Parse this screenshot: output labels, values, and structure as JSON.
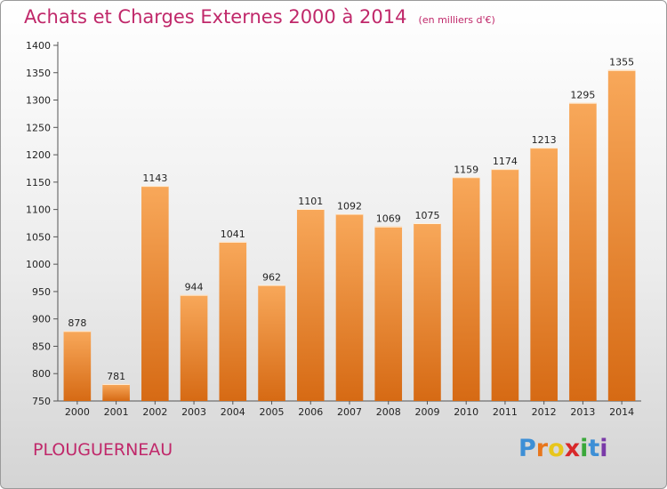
{
  "header": {
    "title": "Achats et Charges Externes 2000 à 2014",
    "unit": "(en milliers d'€)"
  },
  "footer": {
    "commune": "PLOUGUERNEAU",
    "logo_letters": [
      "P",
      "r",
      "o",
      "x",
      "i",
      "t",
      "i"
    ],
    "logo_colors": [
      "#3d8fd6",
      "#e8761c",
      "#e8c61c",
      "#d8282a",
      "#3aa83a",
      "#3d8fd6",
      "#7a3aa8"
    ]
  },
  "colors": {
    "bar_top": "#f8a85a",
    "bar_bottom": "#d66a14",
    "accent": "#c0286a"
  },
  "chart_data": {
    "type": "bar",
    "title": "Achats et Charges Externes 2000 à 2014",
    "xlabel": "",
    "ylabel": "",
    "categories": [
      "2000",
      "2001",
      "2002",
      "2003",
      "2004",
      "2005",
      "2006",
      "2007",
      "2008",
      "2009",
      "2010",
      "2011",
      "2012",
      "2013",
      "2014"
    ],
    "values": [
      878,
      781,
      1143,
      944,
      1041,
      962,
      1101,
      1092,
      1069,
      1075,
      1159,
      1174,
      1213,
      1295,
      1355
    ],
    "ylim": [
      750,
      1400
    ],
    "yticks": [
      750,
      800,
      850,
      900,
      950,
      1000,
      1050,
      1100,
      1150,
      1200,
      1250,
      1300,
      1350,
      1400
    ],
    "grid": false
  }
}
